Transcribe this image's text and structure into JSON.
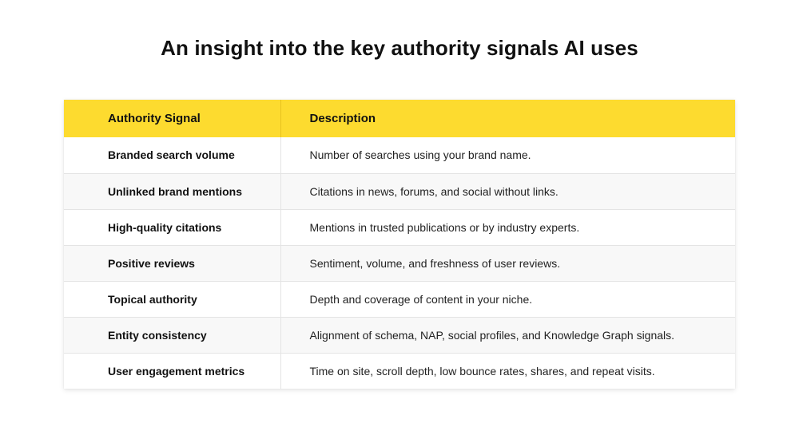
{
  "title": "An insight into the key authority signals AI uses",
  "table": {
    "headers": [
      "Authority Signal",
      "Description"
    ],
    "rows": [
      {
        "signal": "Branded search volume",
        "description": "Number of searches using your brand name."
      },
      {
        "signal": "Unlinked brand mentions",
        "description": "Citations in news, forums, and social without links."
      },
      {
        "signal": "High-quality citations",
        "description": "Mentions in trusted publications or by industry experts."
      },
      {
        "signal": "Positive reviews",
        "description": "Sentiment, volume, and freshness of user reviews."
      },
      {
        "signal": "Topical authority",
        "description": "Depth and coverage of content in your niche."
      },
      {
        "signal": "Entity consistency",
        "description": "Alignment of schema, NAP, social profiles, and Knowledge Graph signals."
      },
      {
        "signal": "User engagement metrics",
        "description": "Time on site, scroll depth, low bounce rates, shares, and repeat visits."
      }
    ]
  },
  "colors": {
    "header_bg": "#fddb2f",
    "row_alt_bg": "#f8f8f8",
    "text": "#111111"
  }
}
